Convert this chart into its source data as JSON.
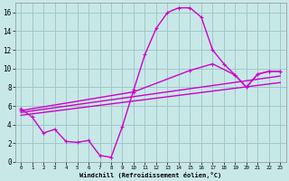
{
  "bg_color": "#c8e8e8",
  "grid_color": "#a0c8c8",
  "line_color": "#cc00cc",
  "xlabel": "Windchill (Refroidissement éolien,°C)",
  "ylim": [
    0,
    17
  ],
  "xlim": [
    -0.5,
    23.5
  ],
  "yticks": [
    0,
    2,
    4,
    6,
    8,
    10,
    12,
    14,
    16
  ],
  "xticks": [
    0,
    1,
    2,
    3,
    4,
    5,
    6,
    7,
    8,
    9,
    10,
    11,
    12,
    13,
    14,
    15,
    16,
    17,
    18,
    19,
    20,
    21,
    22,
    23
  ],
  "curve1_x": [
    0,
    1,
    2,
    3,
    4,
    5,
    6,
    7,
    8,
    9,
    10,
    11,
    12,
    13,
    14,
    15,
    16,
    17,
    18,
    19,
    20,
    21,
    22,
    23
  ],
  "curve1_y": [
    5.7,
    4.8,
    3.1,
    3.5,
    2.2,
    2.1,
    2.3,
    0.7,
    0.5,
    3.8,
    7.7,
    11.5,
    14.3,
    16.0,
    16.5,
    16.5,
    15.5,
    12.0,
    10.5,
    9.3,
    8.0,
    9.4,
    9.7,
    9.7
  ],
  "curve2_x": [
    0,
    10,
    15,
    17,
    19,
    20,
    21,
    22,
    23
  ],
  "curve2_y": [
    5.5,
    7.5,
    9.8,
    10.5,
    9.3,
    8.0,
    9.4,
    9.7,
    9.7
  ],
  "curve3_x": [
    0,
    23
  ],
  "curve3_y": [
    5.3,
    9.2
  ],
  "curve4_x": [
    0,
    23
  ],
  "curve4_y": [
    5.0,
    8.5
  ],
  "ylabel_ticks": [
    "0",
    "2",
    "4",
    "6",
    "8",
    "10",
    "12",
    "14",
    "16"
  ]
}
